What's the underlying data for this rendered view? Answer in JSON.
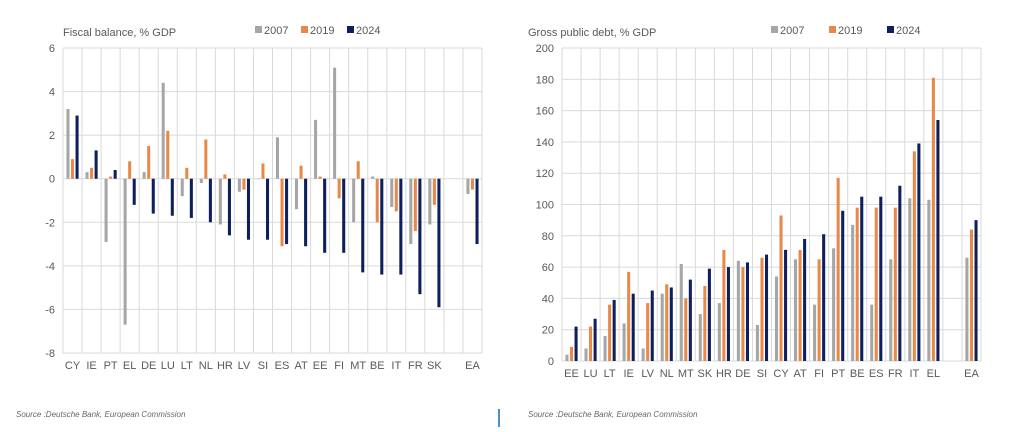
{
  "colors": {
    "s2007": "#a6a6a6",
    "s2019": "#e8894a",
    "s2024": "#0d1f5c",
    "grid": "#d9d9d9",
    "text": "#595959"
  },
  "footer": {
    "left_source": "Source :Deutsche Bank, European Commission",
    "right_source": "Source :Deutsche Bank, European Commission"
  },
  "chart_data": [
    {
      "type": "bar",
      "title": "Fiscal balance, % GDP",
      "xlabel": "",
      "ylabel": "",
      "ylim": [
        -8,
        6
      ],
      "yticks": [
        6,
        4,
        2,
        0,
        -2,
        -4,
        -6,
        -8
      ],
      "grid": true,
      "legend": "top-center",
      "categories": [
        "CY",
        "IE",
        "PT",
        "EL",
        "DE",
        "LU",
        "LT",
        "NL",
        "HR",
        "LV",
        "SI",
        "ES",
        "AT",
        "EE",
        "FI",
        "MT",
        "BE",
        "IT",
        "FR",
        "SK",
        "",
        "EA"
      ],
      "series": [
        {
          "name": "2007",
          "values": [
            3.2,
            0.3,
            -2.9,
            -6.7,
            0.3,
            4.4,
            -0.8,
            -0.2,
            -2.1,
            -0.6,
            0.0,
            1.9,
            -1.4,
            2.7,
            5.1,
            -2.0,
            0.1,
            -1.3,
            -3.0,
            -2.1,
            null,
            -0.7
          ]
        },
        {
          "name": "2019",
          "values": [
            0.9,
            0.5,
            0.1,
            0.8,
            1.5,
            2.2,
            0.5,
            1.8,
            0.2,
            -0.5,
            0.7,
            -3.1,
            0.6,
            0.1,
            -0.9,
            0.8,
            -2.0,
            -1.5,
            -2.4,
            -1.2,
            null,
            -0.5
          ]
        },
        {
          "name": "2024",
          "values": [
            2.9,
            1.3,
            0.4,
            -1.2,
            -1.6,
            -1.7,
            -1.8,
            -2.0,
            -2.6,
            -2.8,
            -2.8,
            -3.0,
            -3.1,
            -3.4,
            -3.4,
            -4.3,
            -4.4,
            -4.4,
            -5.3,
            -5.9,
            null,
            -3.0
          ]
        }
      ]
    },
    {
      "type": "bar",
      "title": "Gross public debt, % GDP",
      "xlabel": "",
      "ylabel": "",
      "ylim": [
        0,
        200
      ],
      "yticks": [
        200,
        180,
        160,
        140,
        120,
        100,
        80,
        60,
        40,
        20,
        0
      ],
      "grid": true,
      "legend": "top-center",
      "categories": [
        "EE",
        "LU",
        "LT",
        "IE",
        "LV",
        "NL",
        "MT",
        "SK",
        "HR",
        "DE",
        "SI",
        "CY",
        "AT",
        "FI",
        "PT",
        "BE",
        "ES",
        "FR",
        "IT",
        "EL",
        "",
        "EA"
      ],
      "series": [
        {
          "name": "2007",
          "values": [
            4,
            8,
            16,
            24,
            8,
            43,
            62,
            30,
            37,
            64,
            23,
            54,
            65,
            36,
            72,
            87,
            36,
            65,
            104,
            103,
            null,
            66
          ]
        },
        {
          "name": "2019",
          "values": [
            9,
            22,
            36,
            57,
            37,
            49,
            40,
            48,
            71,
            60,
            66,
            93,
            71,
            65,
            117,
            98,
            98,
            98,
            134,
            181,
            null,
            84
          ]
        },
        {
          "name": "2024",
          "values": [
            22,
            27,
            39,
            43,
            45,
            47,
            52,
            59,
            60,
            63,
            68,
            71,
            78,
            81,
            96,
            105,
            105,
            112,
            139,
            154,
            null,
            90
          ]
        }
      ]
    }
  ]
}
